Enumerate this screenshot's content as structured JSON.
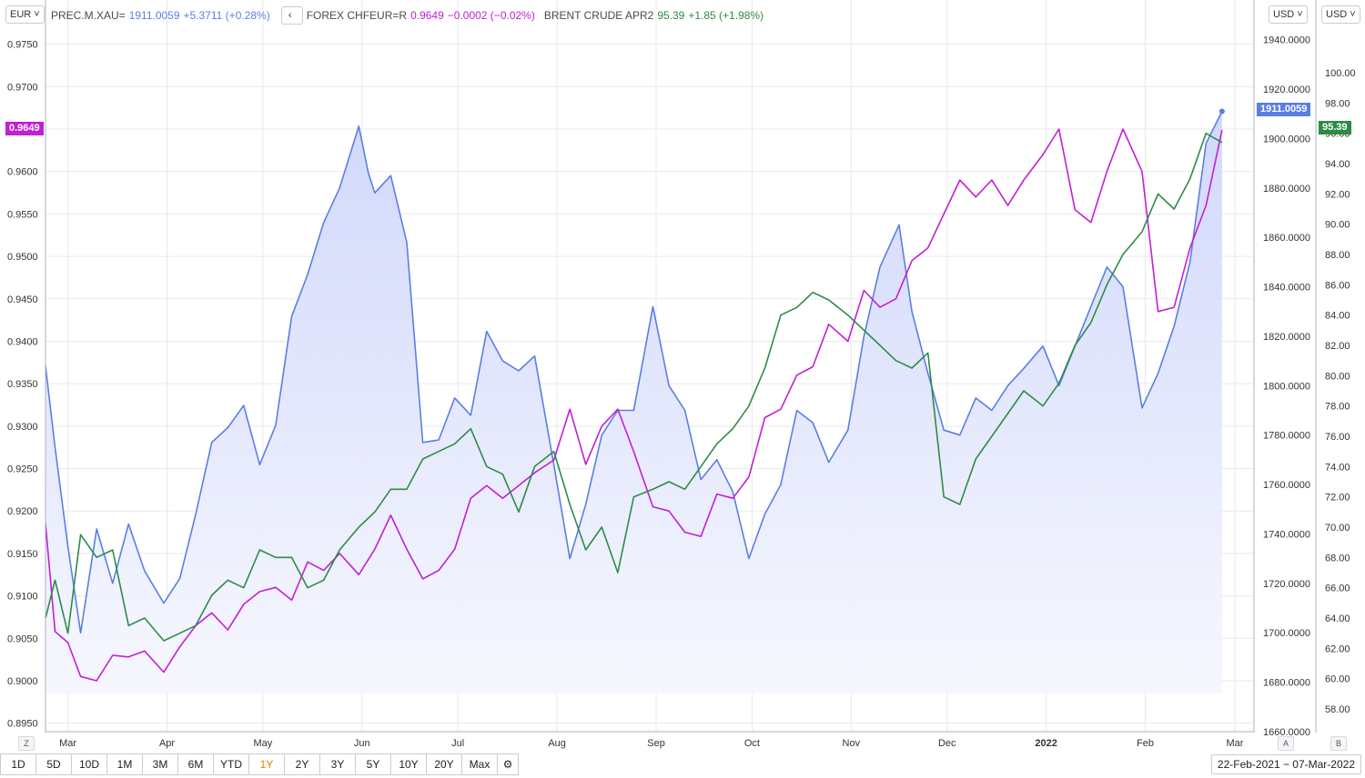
{
  "legend": {
    "gold": {
      "symbol": "PREC.M.XAU=",
      "value": "1911.0059",
      "change": "+5.3711 (+0.28%)"
    },
    "chf": {
      "symbol": "FOREX CHFEUR=R",
      "value": "0.9649",
      "change": "−0.0002 (−0.02%)"
    },
    "brent": {
      "symbol": "BRENT CRUDE APR2",
      "value": "95.39",
      "change": "+1.85 (+1.98%)"
    },
    "nav_label": "‹"
  },
  "units": {
    "left": "EUR",
    "right1": "USD",
    "right2": "USD",
    "caret": "˅"
  },
  "corners": {
    "z": "Z",
    "a": "A",
    "b": "B"
  },
  "price_tags": {
    "chf": "0.9649",
    "gold": "1911.0059",
    "brent": "95.39"
  },
  "ranges": [
    {
      "label": "1D"
    },
    {
      "label": "5D"
    },
    {
      "label": "10D"
    },
    {
      "label": "1M"
    },
    {
      "label": "3M"
    },
    {
      "label": "6M"
    },
    {
      "label": "YTD"
    },
    {
      "label": "1Y"
    },
    {
      "label": "2Y"
    },
    {
      "label": "3Y"
    },
    {
      "label": "5Y"
    },
    {
      "label": "10Y"
    },
    {
      "label": "20Y"
    },
    {
      "label": "Max"
    },
    {
      "label": "⚙"
    }
  ],
  "active_range": "1Y",
  "date_range": "22-Feb-2021  −  07-Mar-2022",
  "colors": {
    "gold": "#5b7ee5",
    "chf": "#c21fd6",
    "brent": "#2e8b46",
    "grid": "#e8e9ec",
    "fill_top": "#cfd6fa",
    "fill_bottom": "#f6f7fe"
  },
  "chart_data": {
    "type": "line",
    "title": "",
    "x_ticks": [
      "Mar",
      "Apr",
      "May",
      "Jun",
      "Jul",
      "Aug",
      "Sep",
      "Oct",
      "Nov",
      "Dec",
      "2022",
      "Feb",
      "Mar"
    ],
    "axes": {
      "left": {
        "unit": "EUR",
        "range": [
          0.894,
          0.977
        ],
        "ticks": [
          "0.9750",
          "0.9700",
          "0.9650",
          "0.9600",
          "0.9550",
          "0.9500",
          "0.9450",
          "0.9400",
          "0.9350",
          "0.9300",
          "0.9250",
          "0.9200",
          "0.9150",
          "0.9100",
          "0.9050",
          "0.9000",
          "0.8950"
        ]
      },
      "right1": {
        "unit": "USD",
        "range": [
          1660,
          1945
        ],
        "ticks": [
          "1940.0000",
          "1920.0000",
          "1900.0000",
          "1880.0000",
          "1860.0000",
          "1840.0000",
          "1820.0000",
          "1800.0000",
          "1780.0000",
          "1760.0000",
          "1740.0000",
          "1720.0000",
          "1700.0000",
          "1680.0000",
          "1660.0000"
        ]
      },
      "right2": {
        "unit": "USD",
        "range": [
          56.5,
          103
        ],
        "ticks": [
          "100.00",
          "98.00",
          "96.00",
          "94.00",
          "92.00",
          "90.00",
          "88.00",
          "86.00",
          "84.00",
          "82.00",
          "80.00",
          "78.00",
          "76.00",
          "74.00",
          "72.00",
          "70.00",
          "68.00",
          "66.00",
          "64.00",
          "62.00",
          "60.00",
          "58.00"
        ]
      }
    },
    "series": [
      {
        "name": "PREC.M.XAU=",
        "axis": "right1",
        "area": true,
        "x": [
          "2021-02-22",
          "2021-02-25",
          "2021-03-01",
          "2021-03-05",
          "2021-03-10",
          "2021-03-15",
          "2021-03-20",
          "2021-03-25",
          "2021-03-31",
          "2021-04-05",
          "2021-04-10",
          "2021-04-15",
          "2021-04-20",
          "2021-04-25",
          "2021-04-30",
          "2021-05-05",
          "2021-05-10",
          "2021-05-15",
          "2021-05-20",
          "2021-05-25",
          "2021-05-31",
          "2021-06-03",
          "2021-06-05",
          "2021-06-10",
          "2021-06-15",
          "2021-06-20",
          "2021-06-25",
          "2021-06-30",
          "2021-07-05",
          "2021-07-10",
          "2021-07-15",
          "2021-07-20",
          "2021-07-25",
          "2021-07-31",
          "2021-08-05",
          "2021-08-10",
          "2021-08-15",
          "2021-08-20",
          "2021-08-25",
          "2021-08-31",
          "2021-09-05",
          "2021-09-10",
          "2021-09-15",
          "2021-09-20",
          "2021-09-25",
          "2021-09-30",
          "2021-10-05",
          "2021-10-10",
          "2021-10-15",
          "2021-10-20",
          "2021-10-25",
          "2021-10-31",
          "2021-11-05",
          "2021-11-10",
          "2021-11-16",
          "2021-11-20",
          "2021-11-25",
          "2021-11-30",
          "2021-12-05",
          "2021-12-10",
          "2021-12-15",
          "2021-12-20",
          "2021-12-25",
          "2021-12-31",
          "2022-01-05",
          "2022-01-10",
          "2022-01-15",
          "2022-01-20",
          "2022-01-25",
          "2022-01-31",
          "2022-02-05",
          "2022-02-10",
          "2022-02-15",
          "2022-02-20",
          "2022-02-25"
        ],
        "y": [
          1808,
          1775,
          1735,
          1700,
          1742,
          1720,
          1744,
          1725,
          1712,
          1722,
          1748,
          1777,
          1783,
          1792,
          1768,
          1784,
          1828,
          1845,
          1866,
          1880,
          1905,
          1886,
          1878,
          1885,
          1858,
          1777,
          1778,
          1795,
          1788,
          1822,
          1810,
          1806,
          1812,
          1768,
          1730,
          1752,
          1780,
          1790,
          1790,
          1832,
          1800,
          1790,
          1762,
          1770,
          1757,
          1730,
          1748,
          1760,
          1790,
          1785,
          1769,
          1782,
          1820,
          1848,
          1865,
          1830,
          1805,
          1782,
          1780,
          1795,
          1790,
          1800,
          1807,
          1816,
          1800,
          1816,
          1832,
          1848,
          1840,
          1791,
          1805,
          1824,
          1850,
          1898,
          1911
        ]
      },
      {
        "name": "FOREX CHFEUR=R",
        "axis": "left",
        "x": [
          "2021-02-22",
          "2021-02-25",
          "2021-03-01",
          "2021-03-05",
          "2021-03-10",
          "2021-03-15",
          "2021-03-20",
          "2021-03-25",
          "2021-03-31",
          "2021-04-05",
          "2021-04-10",
          "2021-04-15",
          "2021-04-20",
          "2021-04-25",
          "2021-04-30",
          "2021-05-05",
          "2021-05-10",
          "2021-05-15",
          "2021-05-20",
          "2021-05-25",
          "2021-05-31",
          "2021-06-05",
          "2021-06-10",
          "2021-06-15",
          "2021-06-20",
          "2021-06-25",
          "2021-06-30",
          "2021-07-05",
          "2021-07-10",
          "2021-07-15",
          "2021-07-20",
          "2021-07-25",
          "2021-07-31",
          "2021-08-05",
          "2021-08-10",
          "2021-08-15",
          "2021-08-20",
          "2021-08-25",
          "2021-08-31",
          "2021-09-05",
          "2021-09-10",
          "2021-09-15",
          "2021-09-20",
          "2021-09-25",
          "2021-09-30",
          "2021-10-05",
          "2021-10-10",
          "2021-10-15",
          "2021-10-20",
          "2021-10-25",
          "2021-10-31",
          "2021-11-05",
          "2021-11-10",
          "2021-11-15",
          "2021-11-20",
          "2021-11-25",
          "2021-11-30",
          "2021-12-05",
          "2021-12-10",
          "2021-12-15",
          "2021-12-20",
          "2021-12-25",
          "2021-12-31",
          "2022-01-05",
          "2022-01-10",
          "2022-01-15",
          "2022-01-20",
          "2022-01-25",
          "2022-01-31",
          "2022-02-05",
          "2022-02-10",
          "2022-02-15",
          "2022-02-20",
          "2022-02-25"
        ],
        "y": [
          0.9185,
          0.9058,
          0.9045,
          0.9005,
          0.9,
          0.903,
          0.9028,
          0.9035,
          0.901,
          0.904,
          0.9065,
          0.908,
          0.906,
          0.909,
          0.9105,
          0.911,
          0.9095,
          0.914,
          0.913,
          0.915,
          0.9125,
          0.9155,
          0.9195,
          0.9155,
          0.912,
          0.913,
          0.9155,
          0.9215,
          0.923,
          0.9215,
          0.923,
          0.9245,
          0.926,
          0.932,
          0.9255,
          0.93,
          0.932,
          0.927,
          0.9205,
          0.92,
          0.9175,
          0.917,
          0.922,
          0.9215,
          0.924,
          0.931,
          0.932,
          0.936,
          0.937,
          0.942,
          0.94,
          0.946,
          0.944,
          0.945,
          0.9495,
          0.951,
          0.955,
          0.959,
          0.957,
          0.959,
          0.956,
          0.959,
          0.962,
          0.965,
          0.9555,
          0.954,
          0.96,
          0.965,
          0.96,
          0.9435,
          0.944,
          0.951,
          0.956,
          0.9649
        ]
      },
      {
        "name": "BRENT CRUDE APR2",
        "axis": "right2",
        "x": [
          "2021-02-22",
          "2021-02-25",
          "2021-03-01",
          "2021-03-05",
          "2021-03-10",
          "2021-03-15",
          "2021-03-20",
          "2021-03-25",
          "2021-03-31",
          "2021-04-05",
          "2021-04-10",
          "2021-04-15",
          "2021-04-20",
          "2021-04-25",
          "2021-04-30",
          "2021-05-05",
          "2021-05-10",
          "2021-05-15",
          "2021-05-20",
          "2021-05-25",
          "2021-05-31",
          "2021-06-05",
          "2021-06-10",
          "2021-06-15",
          "2021-06-20",
          "2021-06-25",
          "2021-06-30",
          "2021-07-05",
          "2021-07-10",
          "2021-07-15",
          "2021-07-20",
          "2021-07-25",
          "2021-07-31",
          "2021-08-05",
          "2021-08-10",
          "2021-08-15",
          "2021-08-20",
          "2021-08-25",
          "2021-08-31",
          "2021-09-05",
          "2021-09-10",
          "2021-09-15",
          "2021-09-20",
          "2021-09-25",
          "2021-09-30",
          "2021-10-05",
          "2021-10-10",
          "2021-10-15",
          "2021-10-20",
          "2021-10-25",
          "2021-10-31",
          "2021-11-05",
          "2021-11-10",
          "2021-11-15",
          "2021-11-20",
          "2021-11-25",
          "2021-11-30",
          "2021-12-05",
          "2021-12-10",
          "2021-12-15",
          "2021-12-20",
          "2021-12-25",
          "2021-12-31",
          "2022-01-05",
          "2022-01-10",
          "2022-01-15",
          "2022-01-20",
          "2022-01-25",
          "2022-01-31",
          "2022-02-05",
          "2022-02-10",
          "2022-02-15",
          "2022-02-20",
          "2022-02-25"
        ],
        "y": [
          64.0,
          66.5,
          63.0,
          69.5,
          68.0,
          68.5,
          63.5,
          64.0,
          62.5,
          63.0,
          63.5,
          65.5,
          66.5,
          66.0,
          68.5,
          68.0,
          68.0,
          66.0,
          66.5,
          68.5,
          70.0,
          71.0,
          72.5,
          72.5,
          74.5,
          75.0,
          75.5,
          76.5,
          74.0,
          73.5,
          71.0,
          74.0,
          75.0,
          71.5,
          68.5,
          70.0,
          67.0,
          72.0,
          72.5,
          73.0,
          72.5,
          74.0,
          75.5,
          76.5,
          78.0,
          80.5,
          84.0,
          84.5,
          85.5,
          85.0,
          84.0,
          83.0,
          82.0,
          81.0,
          80.5,
          81.5,
          72.0,
          71.5,
          74.5,
          76.0,
          77.5,
          79.0,
          78.0,
          79.5,
          82.0,
          83.5,
          86.0,
          88.0,
          89.5,
          92.0,
          91.0,
          93.0,
          96.0,
          95.39
        ]
      }
    ]
  }
}
